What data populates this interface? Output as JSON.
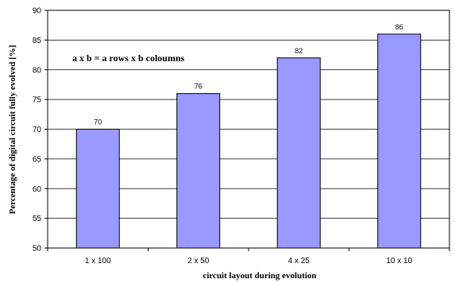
{
  "chart_data": {
    "type": "bar",
    "categories": [
      "1 x 100",
      "2 x 50",
      "4 x 25",
      "10 x 10"
    ],
    "values": [
      70,
      76,
      82,
      86
    ],
    "data_labels": [
      "70",
      "76",
      "82",
      "86"
    ],
    "xlabel": "circuit layout during evolution",
    "ylabel": "Percentage of digital circuit fully evolved [%]",
    "ylim": [
      50,
      90
    ],
    "yticks": [
      "50",
      "55",
      "60",
      "65",
      "70",
      "75",
      "80",
      "85",
      "90"
    ],
    "grid": true,
    "annotation": "a x b = a rows x b coloumns",
    "colors": {
      "bar_fill": "#9999ff",
      "bar_stroke": "#000000",
      "grid": "#000000"
    }
  }
}
